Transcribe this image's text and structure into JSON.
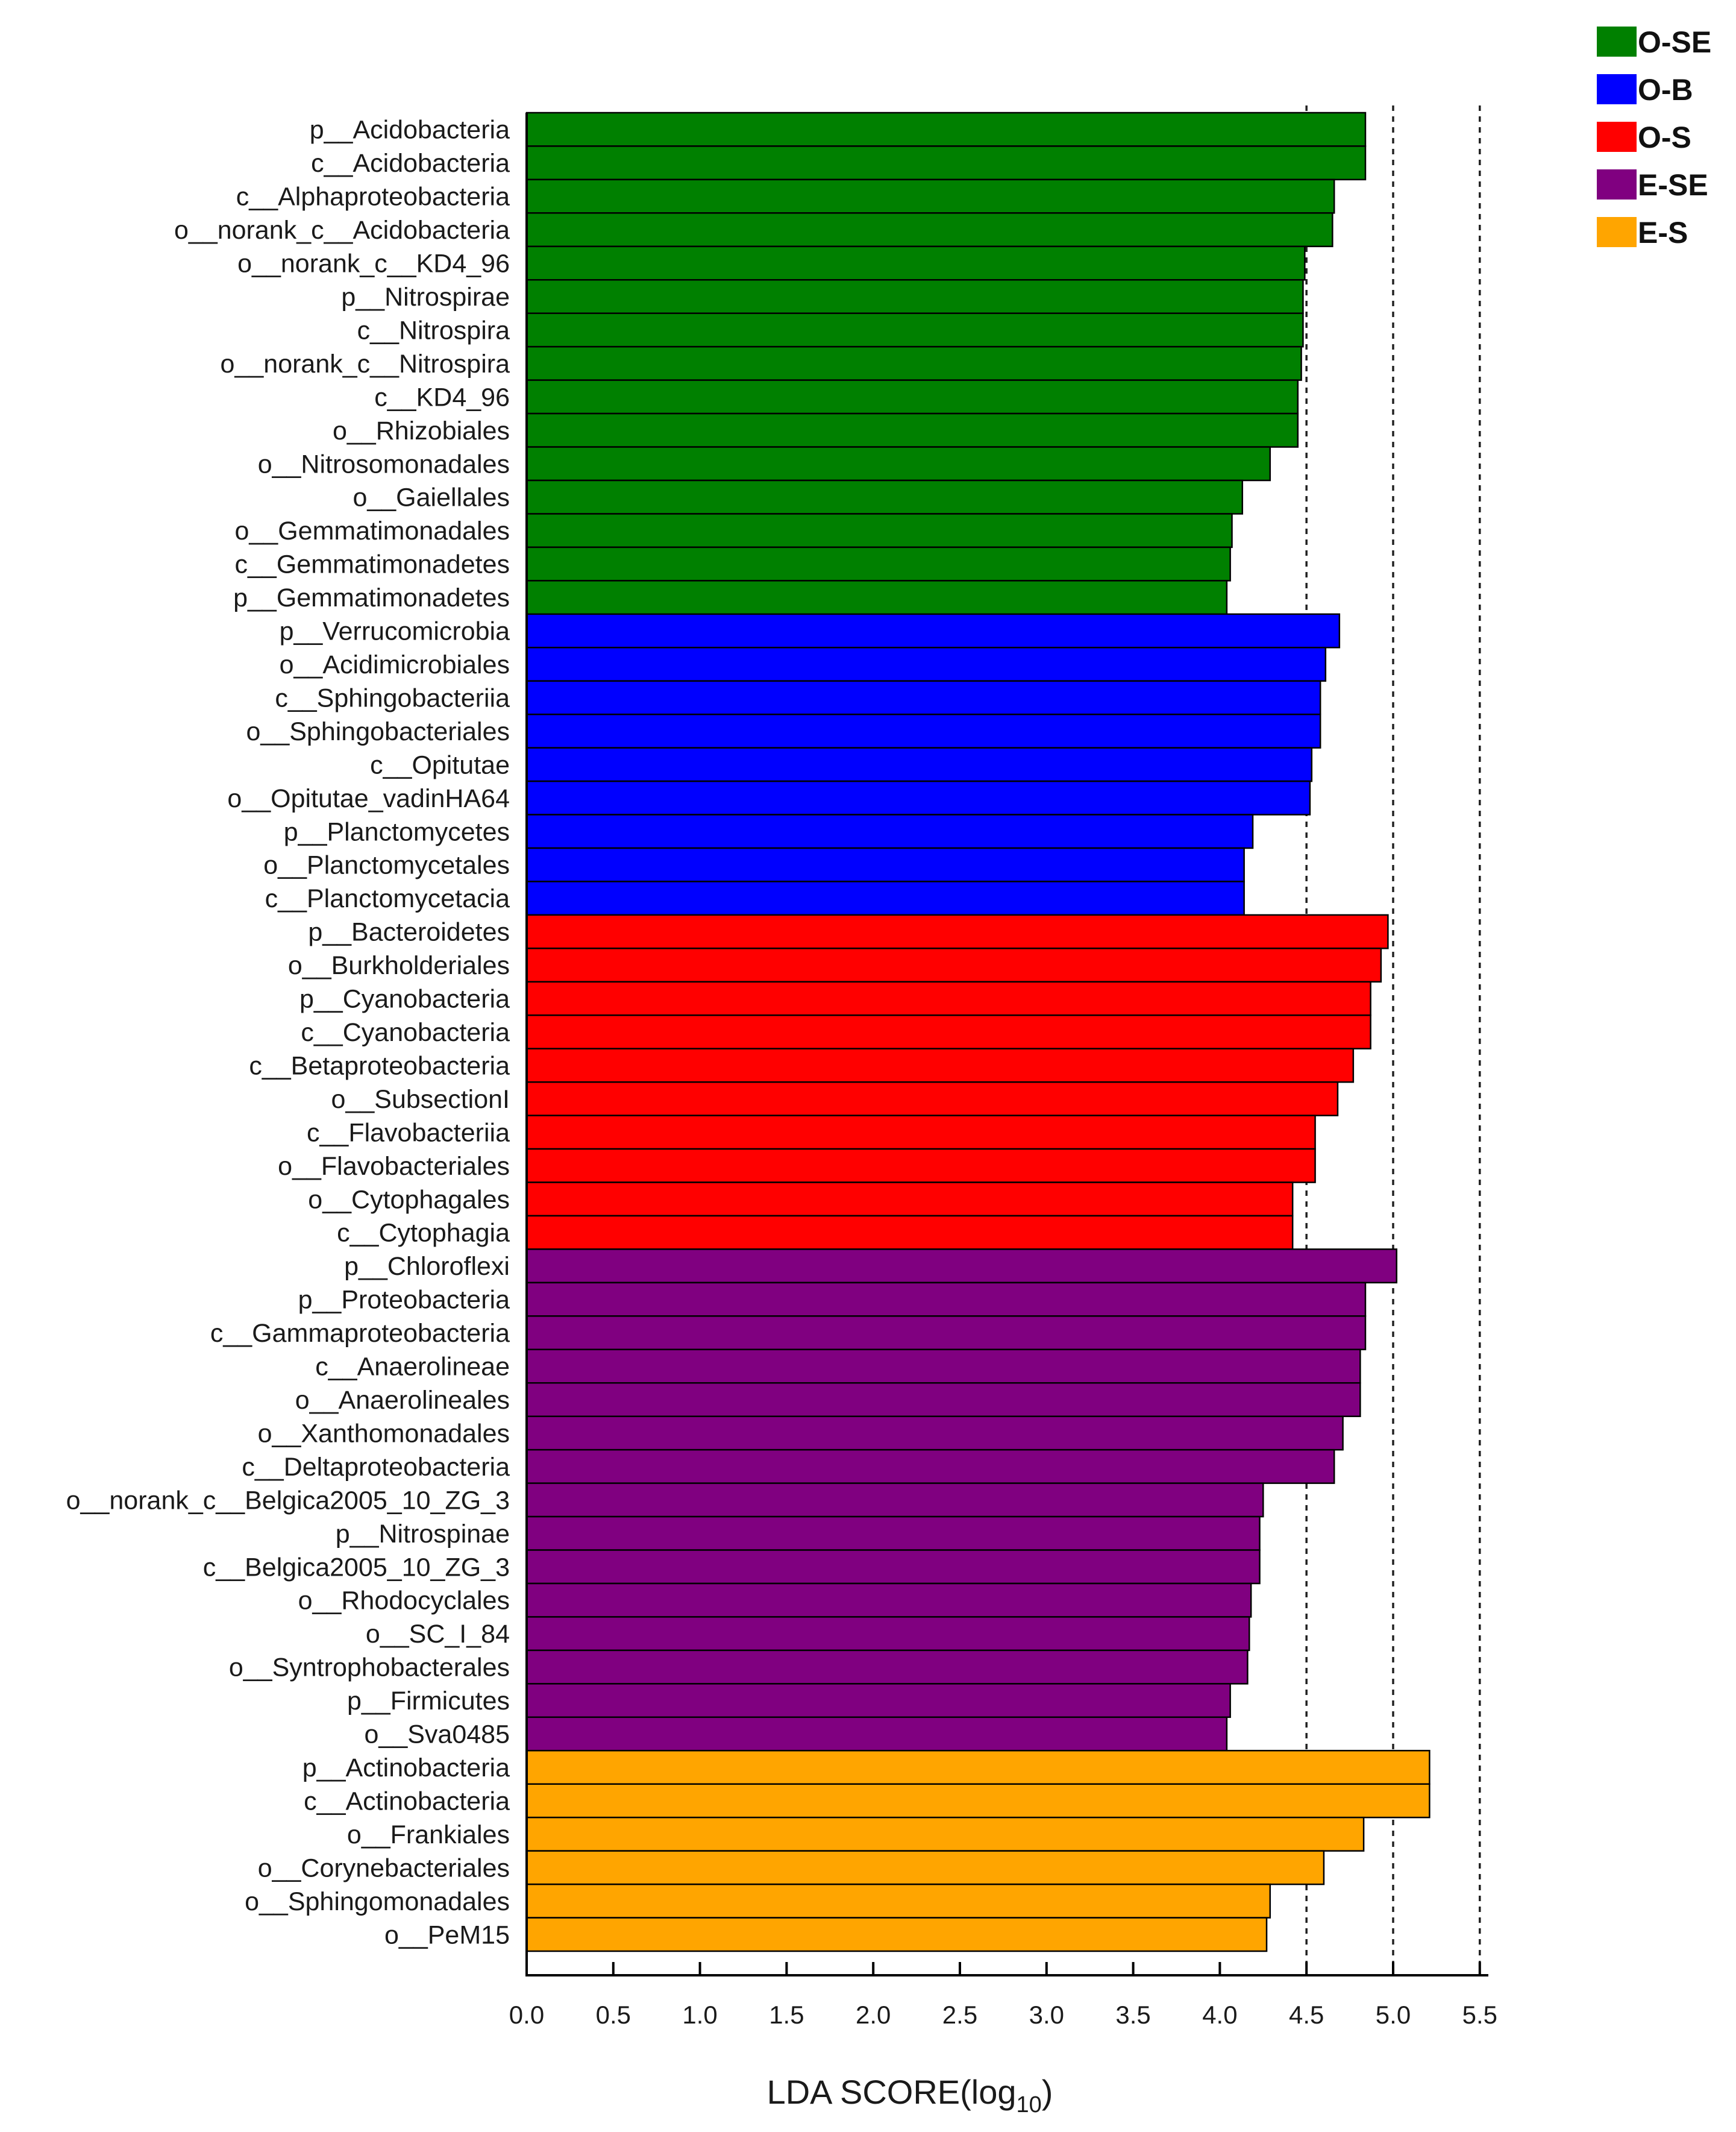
{
  "chart_data": {
    "type": "bar",
    "orientation": "horizontal",
    "xlabel": "LDA SCORE(log",
    "xlabel_subscript": "10",
    "xlabel_close": ")",
    "xlim": [
      0,
      5.5
    ],
    "xticks": [
      "0.0",
      "0.5",
      "1.0",
      "1.5",
      "2.0",
      "2.5",
      "3.0",
      "3.5",
      "4.0",
      "4.5",
      "5.0",
      "5.5"
    ],
    "reference_lines": [
      4.5,
      5.0,
      5.5
    ],
    "legend_position": "top-right",
    "legend": [
      {
        "name": "O-SE",
        "color": "#008000"
      },
      {
        "name": "O-B",
        "color": "#0000ff"
      },
      {
        "name": "O-S",
        "color": "#ff0000"
      },
      {
        "name": "E-SE",
        "color": "#800080"
      },
      {
        "name": "E-S",
        "color": "#ffa500"
      }
    ],
    "bars": [
      {
        "label": "p__Acidobacteria",
        "value": 4.84,
        "group": "O-SE"
      },
      {
        "label": "c__Acidobacteria",
        "value": 4.84,
        "group": "O-SE"
      },
      {
        "label": "c__Alphaproteobacteria",
        "value": 4.66,
        "group": "O-SE"
      },
      {
        "label": "o__norank_c__Acidobacteria",
        "value": 4.65,
        "group": "O-SE"
      },
      {
        "label": "o__norank_c__KD4_96",
        "value": 4.49,
        "group": "O-SE"
      },
      {
        "label": "p__Nitrospirae",
        "value": 4.48,
        "group": "O-SE"
      },
      {
        "label": "c__Nitrospira",
        "value": 4.48,
        "group": "O-SE"
      },
      {
        "label": "o__norank_c__Nitrospira",
        "value": 4.47,
        "group": "O-SE"
      },
      {
        "label": "c__KD4_96",
        "value": 4.45,
        "group": "O-SE"
      },
      {
        "label": "o__Rhizobiales",
        "value": 4.45,
        "group": "O-SE"
      },
      {
        "label": "o__Nitrosomonadales",
        "value": 4.29,
        "group": "O-SE"
      },
      {
        "label": "o__Gaiellales",
        "value": 4.13,
        "group": "O-SE"
      },
      {
        "label": "o__Gemmatimonadales",
        "value": 4.07,
        "group": "O-SE"
      },
      {
        "label": "c__Gemmatimonadetes",
        "value": 4.06,
        "group": "O-SE"
      },
      {
        "label": "p__Gemmatimonadetes",
        "value": 4.04,
        "group": "O-SE"
      },
      {
        "label": "p__Verrucomicrobia",
        "value": 4.69,
        "group": "O-B"
      },
      {
        "label": "o__Acidimicrobiales",
        "value": 4.61,
        "group": "O-B"
      },
      {
        "label": "c__Sphingobacteriia",
        "value": 4.58,
        "group": "O-B"
      },
      {
        "label": "o__Sphingobacteriales",
        "value": 4.58,
        "group": "O-B"
      },
      {
        "label": "c__Opitutae",
        "value": 4.53,
        "group": "O-B"
      },
      {
        "label": "o__Opitutae_vadinHA64",
        "value": 4.52,
        "group": "O-B"
      },
      {
        "label": "p__Planctomycetes",
        "value": 4.19,
        "group": "O-B"
      },
      {
        "label": "o__Planctomycetales",
        "value": 4.14,
        "group": "O-B"
      },
      {
        "label": "c__Planctomycetacia",
        "value": 4.14,
        "group": "O-B"
      },
      {
        "label": "p__Bacteroidetes",
        "value": 4.97,
        "group": "O-S"
      },
      {
        "label": "o__Burkholderiales",
        "value": 4.93,
        "group": "O-S"
      },
      {
        "label": "p__Cyanobacteria",
        "value": 4.87,
        "group": "O-S"
      },
      {
        "label": "c__Cyanobacteria",
        "value": 4.87,
        "group": "O-S"
      },
      {
        "label": "c__Betaproteobacteria",
        "value": 4.77,
        "group": "O-S"
      },
      {
        "label": "o__SubsectionI",
        "value": 4.68,
        "group": "O-S"
      },
      {
        "label": "c__Flavobacteriia",
        "value": 4.55,
        "group": "O-S"
      },
      {
        "label": "o__Flavobacteriales",
        "value": 4.55,
        "group": "O-S"
      },
      {
        "label": "o__Cytophagales",
        "value": 4.42,
        "group": "O-S"
      },
      {
        "label": "c__Cytophagia",
        "value": 4.42,
        "group": "O-S"
      },
      {
        "label": "p__Chloroflexi",
        "value": 5.02,
        "group": "E-SE"
      },
      {
        "label": "p__Proteobacteria",
        "value": 4.84,
        "group": "E-SE"
      },
      {
        "label": "c__Gammaproteobacteria",
        "value": 4.84,
        "group": "E-SE"
      },
      {
        "label": "c__Anaerolineae",
        "value": 4.81,
        "group": "E-SE"
      },
      {
        "label": "o__Anaerolineales",
        "value": 4.81,
        "group": "E-SE"
      },
      {
        "label": "o__Xanthomonadales",
        "value": 4.71,
        "group": "E-SE"
      },
      {
        "label": "c__Deltaproteobacteria",
        "value": 4.66,
        "group": "E-SE"
      },
      {
        "label": "o__norank_c__Belgica2005_10_ZG_3",
        "value": 4.25,
        "group": "E-SE"
      },
      {
        "label": "p__Nitrospinae",
        "value": 4.23,
        "group": "E-SE"
      },
      {
        "label": "c__Belgica2005_10_ZG_3",
        "value": 4.23,
        "group": "E-SE"
      },
      {
        "label": "o__Rhodocyclales",
        "value": 4.18,
        "group": "E-SE"
      },
      {
        "label": "o__SC_I_84",
        "value": 4.17,
        "group": "E-SE"
      },
      {
        "label": "o__Syntrophobacterales",
        "value": 4.16,
        "group": "E-SE"
      },
      {
        "label": "p__Firmicutes",
        "value": 4.06,
        "group": "E-SE"
      },
      {
        "label": "o__Sva0485",
        "value": 4.04,
        "group": "E-SE"
      },
      {
        "label": "p__Actinobacteria",
        "value": 5.21,
        "group": "E-S"
      },
      {
        "label": "c__Actinobacteria",
        "value": 5.21,
        "group": "E-S"
      },
      {
        "label": "o__Frankiales",
        "value": 4.83,
        "group": "E-S"
      },
      {
        "label": "o__Corynebacteriales",
        "value": 4.6,
        "group": "E-S"
      },
      {
        "label": "o__Sphingomonadales",
        "value": 4.29,
        "group": "E-S"
      },
      {
        "label": "o__PeM15",
        "value": 4.27,
        "group": "E-S"
      }
    ]
  }
}
